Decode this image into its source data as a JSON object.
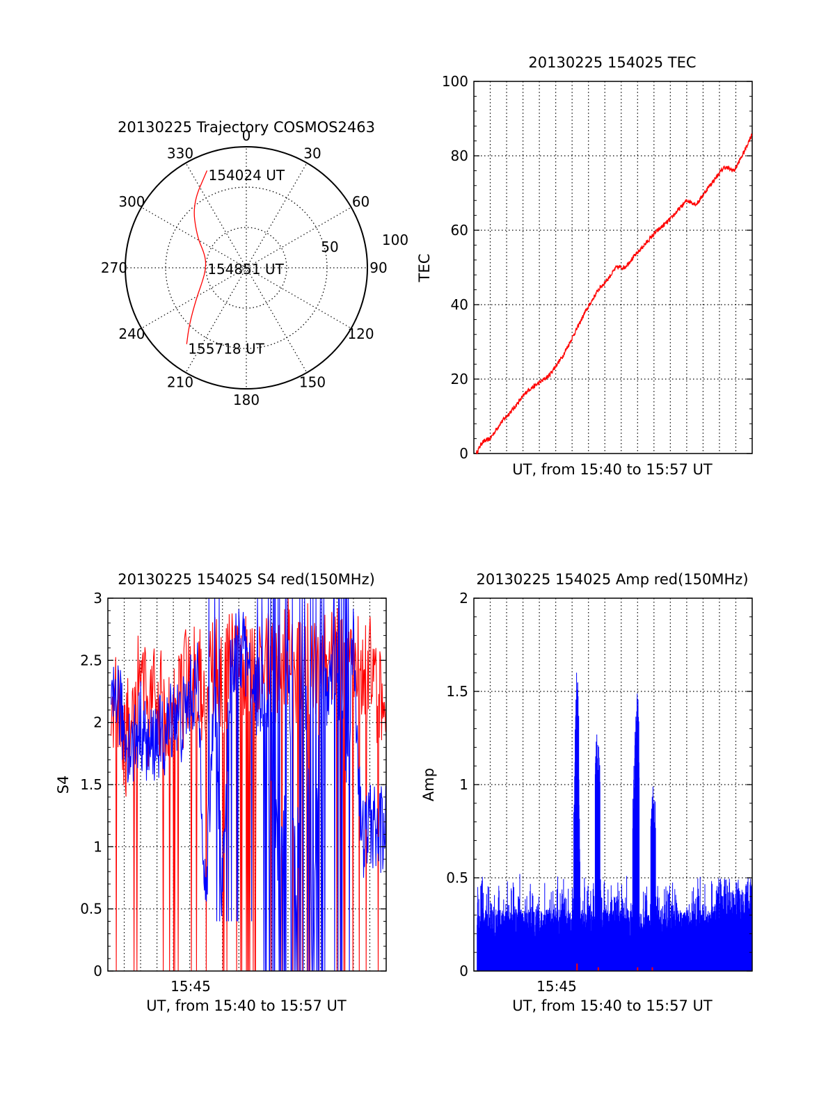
{
  "colors": {
    "red": "#ff0000",
    "blue": "#0000ff",
    "axis": "#000000",
    "grid": "#000000"
  },
  "charts": [
    {
      "id": "trajectory",
      "title": "20130225 Trajectory COSMOS2463",
      "angle_labels": [
        "0",
        "30",
        "60",
        "90",
        "120",
        "150",
        "180",
        "210",
        "240",
        "270",
        "300",
        "330"
      ],
      "radius_labels": [
        "50",
        "100"
      ]
    },
    {
      "id": "tec",
      "title": "20130225 154025 TEC",
      "ylabel": "TEC",
      "xlabel": "UT, from 15:40 to 15:57 UT",
      "yticks": [
        "0",
        "20",
        "40",
        "60",
        "80",
        "100"
      ],
      "xticks": []
    },
    {
      "id": "s4",
      "title": "20130225 154025 S4 red(150MHz)",
      "ylabel": "S4",
      "xlabel": "UT, from 15:40 to 15:57 UT",
      "yticks": [
        "0",
        "0.5",
        "1",
        "1.5",
        "2",
        "2.5",
        "3"
      ],
      "xticks": [
        "15:45"
      ]
    },
    {
      "id": "amp",
      "title": "20130225 154025 Amp red(150MHz)",
      "ylabel": "Amp",
      "xlabel": "UT, from 15:40 to 15:57 UT",
      "yticks": [
        "0",
        "0.5",
        "1",
        "1.5",
        "2"
      ],
      "xticks": [
        "15:45"
      ]
    }
  ],
  "chart_data": [
    {
      "type": "scatter",
      "subtype": "polar-trajectory",
      "title": "20130225 Trajectory COSMOS2463",
      "series": [
        {
          "color": "red",
          "points_az_el": [
            [
              338,
              12
            ],
            [
              320,
              28
            ],
            [
              303,
              46
            ],
            [
              287,
              58
            ],
            [
              270,
              60
            ],
            [
              253,
              56
            ],
            [
              238,
              46
            ],
            [
              225,
              30
            ],
            [
              218,
              18
            ]
          ]
        }
      ],
      "annotations": [
        {
          "text": "154024 UT",
          "az": 338,
          "el": 12
        },
        {
          "text": "154851 UT",
          "az": 275,
          "el": 60
        },
        {
          "text": "155718 UT",
          "az": 218,
          "el": 18
        }
      ],
      "grid": true
    },
    {
      "type": "line",
      "title": "20130225 154025 TEC",
      "xlabel": "UT, from 15:40 to 15:57 UT",
      "ylabel": "TEC",
      "ylim": [
        0,
        100
      ],
      "x_unit": "minutes after 15:40",
      "xlim": [
        0,
        17
      ],
      "grid": true,
      "series": [
        {
          "color": "red",
          "x": [
            0.15,
            0.5,
            1.0,
            1.6,
            2.4,
            3.3,
            4.0,
            4.6,
            5.4,
            6.0,
            6.8,
            7.6,
            8.2,
            8.7,
            9.2,
            10.0,
            11.0,
            12.0,
            13.0,
            13.6,
            14.4,
            15.3,
            15.9,
            16.5,
            17.0
          ],
          "y": [
            0,
            3,
            4,
            8,
            12,
            17,
            19,
            21,
            26,
            31,
            38,
            44,
            47,
            50,
            50,
            54,
            59,
            63,
            68,
            67,
            72,
            77,
            76,
            81,
            86
          ]
        }
      ]
    },
    {
      "type": "line",
      "title": "20130225 154025 S4 red(150MHz)",
      "xlabel": "UT, from 15:40 to 15:57 UT",
      "ylabel": "S4",
      "ylim": [
        0,
        3
      ],
      "x_unit": "minutes after 15:40",
      "xlim": [
        0,
        17
      ],
      "xticks": [
        "15:45"
      ],
      "grid": true,
      "series": [
        {
          "color": "blue",
          "x": [
            0.0,
            0.5,
            1.0,
            1.5,
            2.0,
            2.5,
            3.0,
            3.5,
            4.0,
            4.5,
            5.0,
            5.5,
            6.0,
            6.5,
            7.0,
            7.5,
            8.0,
            8.5,
            9.0,
            9.5,
            10.0,
            10.5,
            11.0,
            11.5,
            12.0,
            12.5,
            13.0,
            13.5,
            14.0,
            14.5,
            15.0,
            15.5,
            16.0,
            16.5,
            17.0
          ],
          "y": [
            1.7,
            2.3,
            1.9,
            1.8,
            2.0,
            1.75,
            1.9,
            1.85,
            2.1,
            2.0,
            2.2,
            2.3,
            0.5,
            2.4,
            0.6,
            2.5,
            2.6,
            2.5,
            2.2,
            2.3,
            1.8,
            0.5,
            2.5,
            0.6,
            2.6,
            0.2,
            2.4,
            2.2,
            2.6,
            1.5,
            2.7,
            1.0,
            1.2,
            1.1,
            1.2
          ]
        },
        {
          "color": "red",
          "x": [
            0.0,
            0.5,
            1.0,
            1.5,
            2.0,
            2.5,
            3.0,
            3.5,
            4.0,
            4.5,
            5.0,
            5.5,
            6.0,
            6.5,
            7.0,
            7.5,
            8.0,
            8.5,
            9.0,
            9.5,
            10.0,
            10.5,
            11.0,
            11.5,
            12.0,
            12.5,
            13.0,
            13.5,
            14.0,
            14.5,
            15.0,
            15.5,
            16.0,
            16.5,
            17.0
          ],
          "y": [
            2.0,
            2.8,
            2.2,
            2.6,
            2.9,
            2.4,
            2.7,
            2.5,
            2.8,
            2.6,
            2.9,
            2.8,
            2.7,
            2.9,
            2.8,
            2.9,
            3.0,
            2.9,
            2.8,
            3.0,
            2.9,
            2.8,
            3.0,
            2.9,
            3.0,
            2.9,
            3.0,
            2.9,
            3.0,
            2.8,
            3.0,
            2.8,
            2.9,
            2.7,
            2.8
          ]
        }
      ]
    },
    {
      "type": "line",
      "title": "20130225 154025 Amp red(150MHz)",
      "xlabel": "UT, from 15:40 to 15:57 UT",
      "ylabel": "Amp",
      "ylim": [
        0,
        2
      ],
      "x_unit": "minutes after 15:40",
      "xlim": [
        0,
        17
      ],
      "xticks": [
        "15:45"
      ],
      "grid": true,
      "series": [
        {
          "color": "blue",
          "x": [
            0.0,
            0.5,
            1.0,
            1.5,
            2.0,
            2.5,
            3.0,
            3.5,
            4.0,
            4.5,
            5.0,
            5.5,
            6.0,
            6.5,
            6.2,
            6.3,
            6.4,
            7.0,
            7.5,
            7.6,
            8.0,
            8.5,
            9.0,
            9.5,
            9.8,
            10.0,
            10.5,
            10.9,
            11.0,
            11.5,
            12.0,
            12.5,
            13.0,
            13.5,
            14.0,
            14.5,
            15.0,
            15.5,
            16.0,
            16.5,
            17.0
          ],
          "y": [
            0.45,
            0.5,
            0.45,
            0.5,
            0.42,
            0.48,
            0.45,
            0.4,
            0.45,
            0.4,
            0.42,
            0.4,
            0.3,
            0.35,
            1.45,
            1.7,
            1.5,
            0.3,
            1.3,
            1.35,
            0.3,
            0.3,
            0.3,
            0.35,
            1.2,
            1.55,
            0.3,
            0.95,
            1.05,
            0.3,
            0.3,
            0.28,
            0.25,
            0.3,
            0.28,
            0.3,
            0.5,
            0.55,
            0.85,
            0.5,
            0.45
          ]
        },
        {
          "color": "red",
          "x": [
            6.3,
            7.6,
            10.0,
            10.9
          ],
          "y": [
            0.04,
            0.02,
            0.02,
            0.02
          ]
        }
      ]
    }
  ]
}
